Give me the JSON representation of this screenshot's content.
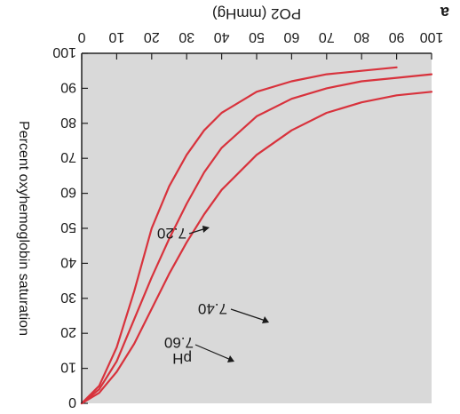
{
  "panel_letter": "a",
  "colors": {
    "background": "#ffffff",
    "plot_background": "#d9d9d9",
    "curve": "#d8323c",
    "text": "#1a1a1a",
    "axis": "#222222"
  },
  "chart_data": {
    "type": "line",
    "orientation": "rotated-180",
    "title": "",
    "xlabel": "PO2 (mmHg)",
    "ylabel": "Percent oxyhemoglobin saturation",
    "xlim": [
      0,
      100
    ],
    "ylim": [
      0,
      100
    ],
    "x_ticks": [
      "0",
      "10",
      "20",
      "30",
      "40",
      "50",
      "60",
      "70",
      "80",
      "90",
      "100"
    ],
    "y_ticks": [
      "0",
      "10",
      "20",
      "30",
      "40",
      "50",
      "60",
      "70",
      "80",
      "90",
      "100"
    ],
    "grid": false,
    "series": [
      {
        "name": "7.20",
        "x": [
          0,
          5,
          10,
          15,
          20,
          25,
          30,
          35,
          40,
          50,
          60,
          70,
          80,
          90,
          100
        ],
        "y": [
          0,
          3,
          9,
          17,
          27,
          37,
          46,
          54,
          61,
          71,
          78,
          83,
          86,
          88,
          89
        ]
      },
      {
        "name": "7.40",
        "x": [
          0,
          5,
          10,
          15,
          20,
          25,
          30,
          35,
          40,
          50,
          60,
          70,
          80,
          90,
          100
        ],
        "y": [
          0,
          4,
          12,
          24,
          36,
          47,
          57,
          66,
          73,
          82,
          87,
          90,
          92,
          93,
          94
        ]
      },
      {
        "name": "7.60",
        "x": [
          0,
          5,
          10,
          15,
          20,
          25,
          30,
          35,
          40,
          50,
          60,
          70,
          80,
          90
        ],
        "y": [
          0,
          5,
          16,
          32,
          50,
          62,
          71,
          78,
          83,
          89,
          92,
          94,
          95,
          96
        ]
      }
    ],
    "annotations": [
      {
        "text": "7.20",
        "series": "7.20"
      },
      {
        "text": "7.40",
        "series": "7.40"
      },
      {
        "text": "pH",
        "series": "7.60"
      },
      {
        "text": "7.60",
        "series": "7.60"
      }
    ]
  }
}
